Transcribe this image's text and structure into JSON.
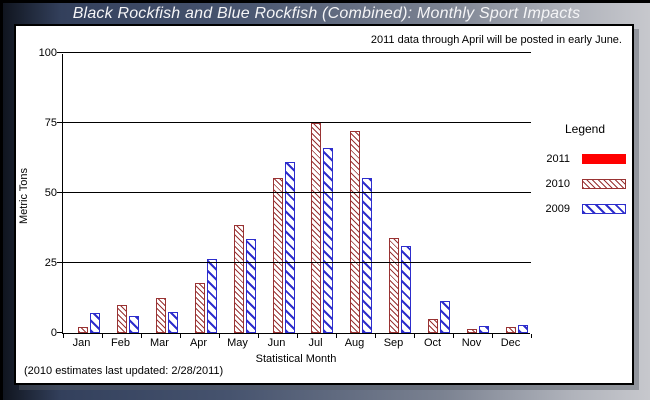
{
  "window": {
    "title": "Black Rockfish and Blue Rockfish (Combined): Monthly Sport Impacts"
  },
  "notes": {
    "top": "2011 data through April will be posted in early June.",
    "bottom": "(2010 estimates last updated: 2/28/2011)"
  },
  "chart_data": {
    "type": "bar",
    "title": "Black Rockfish and Blue Rockfish (Combined): Monthly Sport Impacts",
    "xlabel": "Statistical Month",
    "ylabel": "Metric Tons",
    "ylim": [
      0,
      100
    ],
    "yticks": [
      0,
      25,
      50,
      75,
      100
    ],
    "grid": "horizontal",
    "categories": [
      "Jan",
      "Feb",
      "Mar",
      "Apr",
      "May",
      "Jun",
      "Jul",
      "Aug",
      "Sep",
      "Oct",
      "Nov",
      "Dec"
    ],
    "series": [
      {
        "name": "2011",
        "color": "#ff0000",
        "pattern": "solid",
        "values": [
          0,
          0,
          0,
          0,
          0,
          0,
          0,
          0,
          0,
          0,
          0,
          0
        ]
      },
      {
        "name": "2010",
        "color": "#993333",
        "pattern": "fine",
        "values": [
          2,
          10,
          12.5,
          18,
          38.5,
          55.5,
          75,
          72,
          34,
          5,
          1.5,
          2
        ]
      },
      {
        "name": "2009",
        "color": "#2d2dcc",
        "pattern": "wide",
        "values": [
          7,
          6,
          7.5,
          26.5,
          33.5,
          61,
          66,
          55.5,
          31,
          11.5,
          2.5,
          3
        ]
      }
    ],
    "legend": {
      "title": "Legend",
      "position": "right"
    }
  }
}
